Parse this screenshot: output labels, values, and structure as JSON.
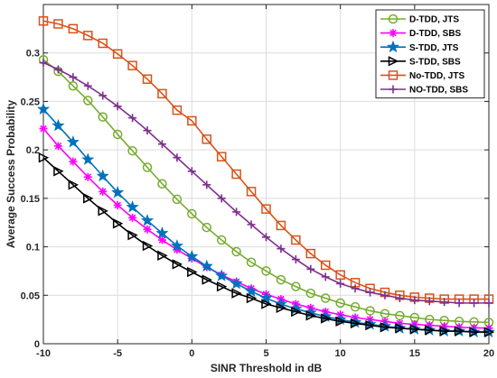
{
  "chart_data": {
    "type": "line",
    "title": "",
    "xlabel": "SINR Threshold in dB",
    "ylabel": "Average Success Probability",
    "xlim": [
      -10,
      20
    ],
    "ylim": [
      0,
      0.35
    ],
    "xticks": [
      -10,
      -5,
      0,
      5,
      10,
      15,
      20
    ],
    "yticks": [
      0,
      0.05,
      0.1,
      0.15,
      0.2,
      0.25,
      0.3
    ],
    "xtick_labels": [
      "-10",
      "-5",
      "0",
      "5",
      "10",
      "15",
      "20"
    ],
    "ytick_labels": [
      "0",
      "0.05",
      "0.1",
      "0.15",
      "0.2",
      "0.25",
      "0.3"
    ],
    "grid": true,
    "legend_position": "top-right",
    "x": [
      -10,
      -9,
      -8,
      -7,
      -6,
      -5,
      -4,
      -3,
      -2,
      -1,
      0,
      1,
      2,
      3,
      4,
      5,
      6,
      7,
      8,
      9,
      10,
      11,
      12,
      13,
      14,
      15,
      16,
      17,
      18,
      19,
      20
    ],
    "series": [
      {
        "name": "D-TDD, JTS",
        "color": "#77ac30",
        "marker": "circle",
        "values": [
          0.293,
          0.281,
          0.266,
          0.251,
          0.234,
          0.216,
          0.199,
          0.182,
          0.165,
          0.149,
          0.134,
          0.12,
          0.107,
          0.095,
          0.084,
          0.075,
          0.066,
          0.059,
          0.052,
          0.047,
          0.042,
          0.038,
          0.034,
          0.031,
          0.029,
          0.027,
          0.025,
          0.024,
          0.023,
          0.0225,
          0.022
        ]
      },
      {
        "name": "D-TDD, SBS",
        "color": "#ff00ff",
        "marker": "asterisk",
        "values": [
          0.222,
          0.204,
          0.188,
          0.172,
          0.157,
          0.143,
          0.13,
          0.118,
          0.107,
          0.097,
          0.088,
          0.079,
          0.071,
          0.064,
          0.057,
          0.051,
          0.046,
          0.041,
          0.037,
          0.033,
          0.03,
          0.027,
          0.025,
          0.023,
          0.021,
          0.02,
          0.019,
          0.018,
          0.017,
          0.0165,
          0.016
        ]
      },
      {
        "name": "S-TDD, JTS",
        "color": "#0072bd",
        "marker": "star",
        "values": [
          0.242,
          0.225,
          0.208,
          0.19,
          0.173,
          0.156,
          0.141,
          0.127,
          0.114,
          0.101,
          0.09,
          0.08,
          0.07,
          0.062,
          0.054,
          0.047,
          0.041,
          0.036,
          0.032,
          0.028,
          0.025,
          0.022,
          0.02,
          0.018,
          0.016,
          0.015,
          0.014,
          0.013,
          0.013,
          0.012,
          0.012
        ]
      },
      {
        "name": "S-TDD, SBS",
        "color": "#000000",
        "marker": "triangle-right",
        "values": [
          0.192,
          0.178,
          0.164,
          0.15,
          0.137,
          0.124,
          0.112,
          0.101,
          0.091,
          0.082,
          0.074,
          0.066,
          0.059,
          0.052,
          0.047,
          0.041,
          0.037,
          0.033,
          0.029,
          0.026,
          0.023,
          0.021,
          0.019,
          0.017,
          0.016,
          0.015,
          0.014,
          0.013,
          0.013,
          0.012,
          0.012
        ]
      },
      {
        "name": "No-TDD, JTS",
        "color": "#d95319",
        "marker": "square",
        "values": [
          0.333,
          0.33,
          0.325,
          0.318,
          0.31,
          0.299,
          0.287,
          0.273,
          0.258,
          0.241,
          0.23,
          0.211,
          0.193,
          0.175,
          0.157,
          0.139,
          0.122,
          0.107,
          0.093,
          0.081,
          0.071,
          0.063,
          0.057,
          0.053,
          0.05,
          0.048,
          0.047,
          0.046,
          0.046,
          0.046,
          0.046
        ]
      },
      {
        "name": "NO-TDD, SBS",
        "color": "#7e2f8e",
        "marker": "plus",
        "values": [
          0.29,
          0.283,
          0.275,
          0.266,
          0.256,
          0.245,
          0.233,
          0.22,
          0.206,
          0.192,
          0.178,
          0.164,
          0.15,
          0.136,
          0.123,
          0.11,
          0.098,
          0.087,
          0.077,
          0.069,
          0.062,
          0.057,
          0.053,
          0.05,
          0.047,
          0.045,
          0.044,
          0.043,
          0.042,
          0.042,
          0.042
        ]
      }
    ]
  }
}
